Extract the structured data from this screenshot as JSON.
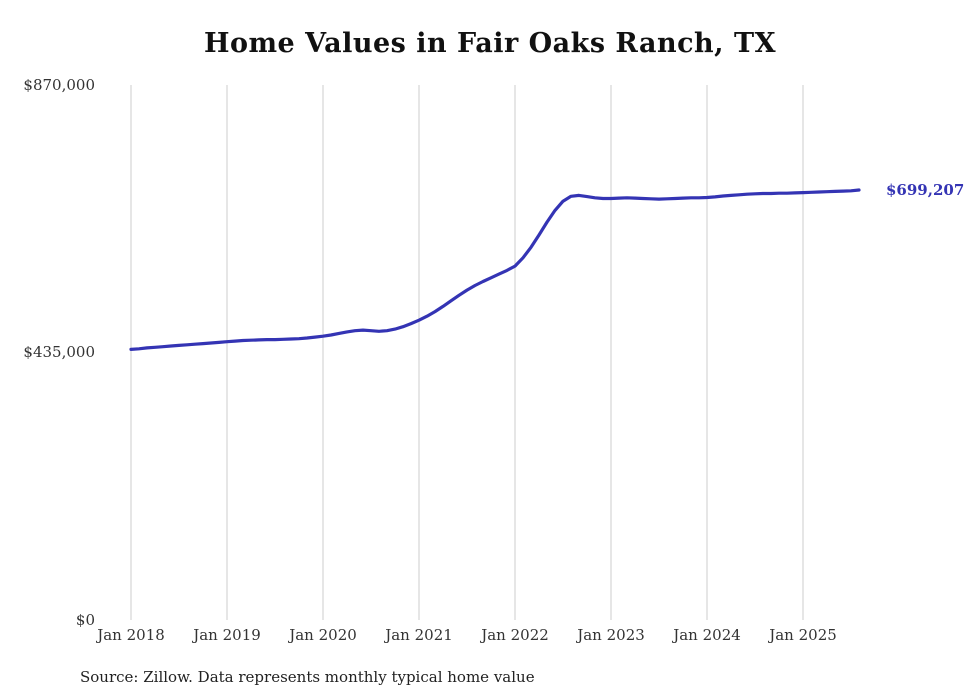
{
  "chart_data": {
    "type": "line",
    "title": "Home Values in Fair Oaks Ranch, TX",
    "xlabel": "",
    "ylabel": "",
    "ylim": [
      0,
      870000
    ],
    "y_tick_labels": [
      "$870,000",
      "$435,000",
      "$0"
    ],
    "x_tick_labels": [
      "Jan 2018",
      "Jan 2019",
      "Jan 2020",
      "Jan 2021",
      "Jan 2022",
      "Jan 2023",
      "Jan 2024",
      "Jan 2025"
    ],
    "grid": "vertical-only",
    "legend": "none",
    "line_color": "#3434b4",
    "grid_color": "#cccccc",
    "end_label": "$699,207",
    "source_note": "Source: Zillow. Data represents monthly typical home value",
    "series": [
      {
        "name": "Typical home value",
        "x_unit": "month",
        "x_start": "Jan 2018",
        "x_end": "Aug 2025",
        "values": [
          440000,
          441000,
          442500,
          443500,
          444500,
          445500,
          446500,
          447500,
          448500,
          449500,
          450500,
          451500,
          452500,
          453500,
          454500,
          455000,
          455500,
          456000,
          456000,
          456500,
          457000,
          457500,
          458500,
          460000,
          461500,
          463500,
          466000,
          468500,
          470500,
          471500,
          470500,
          469500,
          470500,
          473000,
          477000,
          482000,
          487500,
          494000,
          501500,
          510000,
          519000,
          528000,
          536500,
          544000,
          550500,
          556500,
          562500,
          568500,
          575500,
          589000,
          606000,
          626000,
          647000,
          666000,
          681000,
          689000,
          690500,
          688500,
          686500,
          685500,
          685500,
          686000,
          686500,
          686000,
          685500,
          685000,
          684500,
          685000,
          685500,
          686000,
          686500,
          686500,
          687000,
          688000,
          689500,
          690500,
          691500,
          692500,
          693000,
          693500,
          693500,
          694000,
          694000,
          694500,
          695000,
          695500,
          696000,
          696500,
          697000,
          697500,
          698000,
          699207
        ]
      }
    ]
  }
}
